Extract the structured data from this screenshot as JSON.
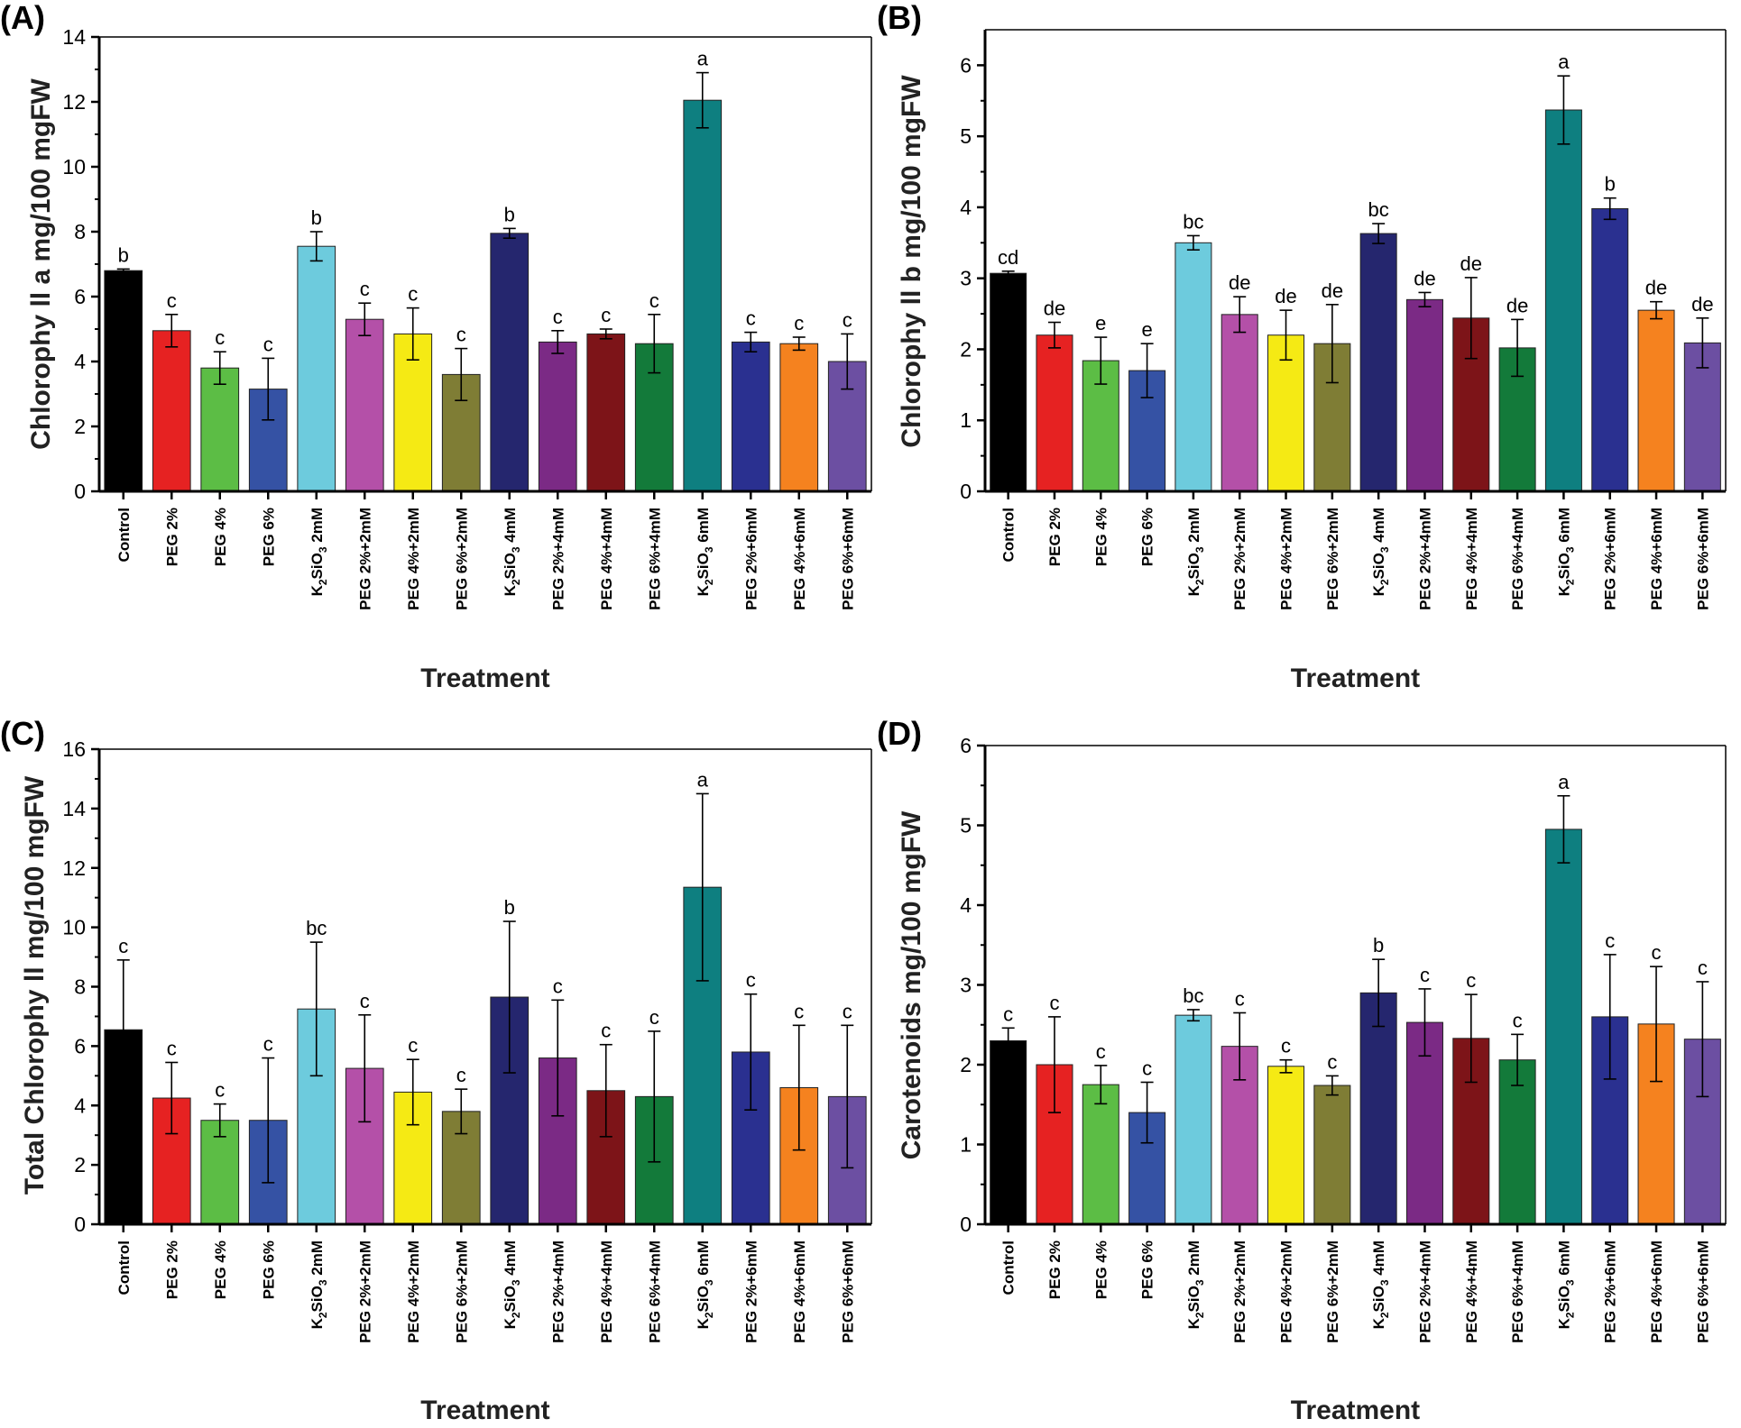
{
  "figure": {
    "categories": [
      [
        "Control"
      ],
      [
        "PEG 2%"
      ],
      [
        "PEG 4%"
      ],
      [
        "PEG 6%"
      ],
      [
        "K",
        "2",
        "SiO",
        "3",
        " 2mM"
      ],
      [
        "PEG 2%+2mM"
      ],
      [
        "PEG 4%+2mM"
      ],
      [
        "PEG 6%+2mM"
      ],
      [
        "K",
        "2",
        "SiO",
        "3",
        " 4mM"
      ],
      [
        "PEG 2%+4mM"
      ],
      [
        "PEG 4%+4mM"
      ],
      [
        "PEG 6%+4mM"
      ],
      [
        "K",
        "2",
        "SiO",
        "3",
        " 6mM"
      ],
      [
        "PEG 2%+6mM"
      ],
      [
        "PEG 4%+6mM"
      ],
      [
        "PEG 6%+6mM"
      ]
    ],
    "colors": [
      "#000000",
      "#e62222",
      "#5cbd45",
      "#3552a4",
      "#6dcbdd",
      "#b450a8",
      "#f5ea14",
      "#7f7d35",
      "#25266e",
      "#7b2a85",
      "#7d1418",
      "#137a3a",
      "#0e7f80",
      "#2a3090",
      "#f5821f",
      "#6c4fa2"
    ]
  },
  "chart_data": [
    {
      "panel": "(A)",
      "type": "bar",
      "xlabel": "Treatment",
      "ylabel": "Chlorophy ll a mg/100 mgFW",
      "ylim": [
        0,
        14
      ],
      "yticks": [
        0,
        2,
        4,
        6,
        8,
        10,
        12,
        14
      ],
      "values": [
        6.8,
        4.95,
        3.8,
        3.15,
        7.55,
        5.3,
        4.85,
        3.6,
        7.95,
        4.6,
        4.85,
        4.55,
        12.05,
        4.6,
        4.55,
        4.0
      ],
      "errors": [
        0.05,
        0.5,
        0.5,
        0.95,
        0.45,
        0.5,
        0.8,
        0.8,
        0.15,
        0.35,
        0.15,
        0.9,
        0.85,
        0.3,
        0.2,
        0.85
      ],
      "labels": [
        "b",
        "c",
        "c",
        "c",
        "b",
        "c",
        "c",
        "c",
        "b",
        "c",
        "c",
        "c",
        "a",
        "c",
        "c",
        "c"
      ]
    },
    {
      "panel": "(B)",
      "type": "bar",
      "xlabel": "Treatment",
      "ylabel": "Chlorophy ll b mg/100 mgFW",
      "ylim": [
        0,
        6.5
      ],
      "yticks": [
        0,
        1,
        2,
        3,
        4,
        5,
        6
      ],
      "values": [
        3.07,
        2.2,
        1.84,
        1.7,
        3.5,
        2.49,
        2.2,
        2.08,
        3.63,
        2.7,
        2.44,
        2.02,
        5.37,
        3.98,
        2.55,
        2.09
      ],
      "errors": [
        0.03,
        0.18,
        0.33,
        0.38,
        0.1,
        0.25,
        0.35,
        0.55,
        0.14,
        0.1,
        0.57,
        0.4,
        0.48,
        0.15,
        0.12,
        0.35
      ],
      "labels": [
        "cd",
        "de",
        "e",
        "e",
        "bc",
        "de",
        "de",
        "de",
        "bc",
        "de",
        "de",
        "de",
        "a",
        "b",
        "de",
        "de"
      ]
    },
    {
      "panel": "(C)",
      "type": "bar",
      "xlabel": "Treatment",
      "ylabel": "Total Chlorophy ll mg/100 mgFW",
      "ylim": [
        0,
        16
      ],
      "yticks": [
        0,
        2,
        4,
        6,
        8,
        10,
        12,
        14,
        16
      ],
      "values": [
        6.55,
        4.25,
        3.5,
        3.5,
        7.25,
        5.25,
        4.45,
        3.8,
        7.65,
        5.6,
        4.5,
        4.3,
        11.35,
        5.8,
        4.6,
        4.3
      ],
      "errors": [
        2.35,
        1.2,
        0.55,
        2.1,
        2.25,
        1.8,
        1.1,
        0.75,
        2.55,
        1.95,
        1.55,
        2.2,
        3.15,
        1.95,
        2.1,
        2.4
      ],
      "labels": [
        "c",
        "c",
        "c",
        "c",
        "bc",
        "c",
        "c",
        "c",
        "b",
        "c",
        "c",
        "c",
        "a",
        "c",
        "c",
        "c"
      ]
    },
    {
      "panel": "(D)",
      "type": "bar",
      "xlabel": "Treatment",
      "ylabel": "Carotenoids mg/100 mgFW",
      "ylim": [
        0,
        6
      ],
      "yticks": [
        0,
        1,
        2,
        3,
        4,
        5,
        6
      ],
      "values": [
        2.3,
        2.0,
        1.75,
        1.4,
        2.62,
        2.23,
        1.98,
        1.74,
        2.9,
        2.53,
        2.33,
        2.06,
        4.95,
        2.6,
        2.51,
        2.32
      ],
      "errors": [
        0.16,
        0.6,
        0.24,
        0.38,
        0.07,
        0.42,
        0.08,
        0.12,
        0.42,
        0.42,
        0.55,
        0.32,
        0.42,
        0.78,
        0.72,
        0.72
      ],
      "labels": [
        "c",
        "c",
        "c",
        "c",
        "bc",
        "c",
        "c",
        "c",
        "b",
        "c",
        "c",
        "c",
        "a",
        "c",
        "c",
        "c"
      ]
    }
  ]
}
